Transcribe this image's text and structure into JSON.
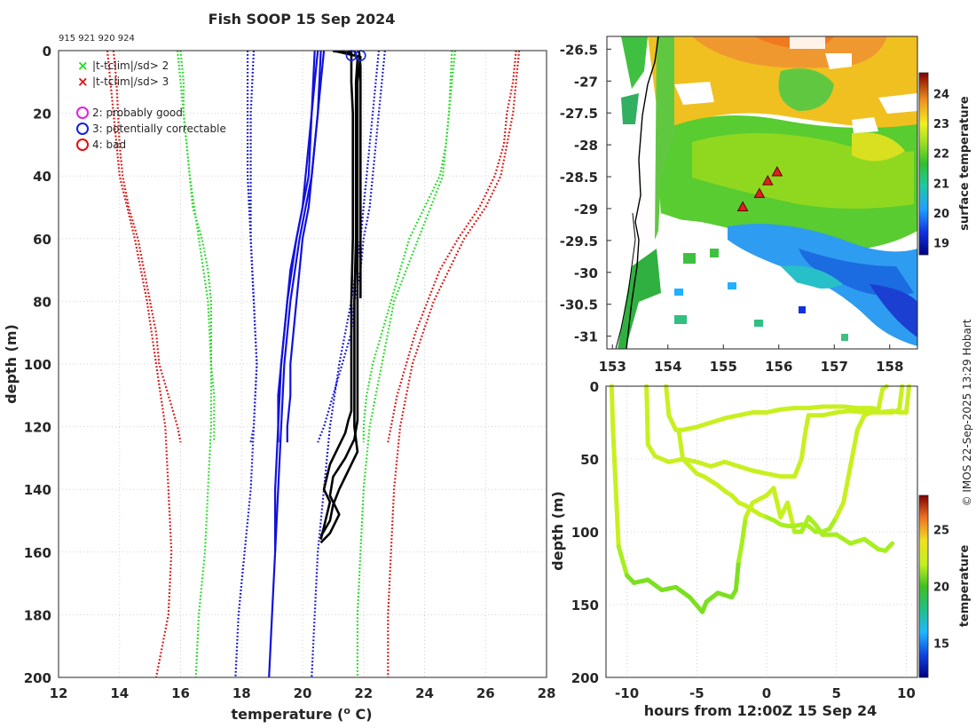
{
  "title": "Fish SOOP 15 Sep 2024",
  "ids": "915 921 920 924",
  "footer": "© IMOS 22-Sep-2025 13:29 Hobart",
  "colors": {
    "clim2": "#22dd22",
    "clim3": "#dd1111",
    "climsd1": "#1111dd",
    "profile": "#000000",
    "probably_good": "#dd22dd",
    "correctable": "#1122dd",
    "bad": "#dd1111"
  },
  "legend": {
    "sd2": "|t-tclim|/sd> 2",
    "sd3": "|t-tclim|/sd> 3",
    "flag2": "2: probably good",
    "flag3": "3: potentially correctable",
    "flag4": "4: bad"
  },
  "chart_data": [
    {
      "type": "line",
      "name": "profile",
      "xlabel": "temperature (o C)",
      "ylabel": "depth (m)",
      "xlim": [
        12,
        28
      ],
      "ylim": [
        200,
        0
      ],
      "xticks": [
        "12",
        "14",
        "16",
        "18",
        "20",
        "22",
        "24",
        "26",
        "28"
      ],
      "yticks": [
        "0",
        "20",
        "40",
        "60",
        "80",
        "100",
        "120",
        "140",
        "160",
        "180",
        "200"
      ],
      "grid": true,
      "series": [
        {
          "name": "clim+3sd a",
          "style": "dotted",
          "color": "red",
          "depth": [
            0,
            10,
            20,
            30,
            40,
            50,
            60,
            70,
            80,
            90,
            100,
            110,
            120,
            125
          ],
          "temp": [
            27.0,
            26.9,
            26.7,
            26.6,
            26.3,
            25.8,
            25.1,
            24.5,
            24.1,
            23.7,
            23.4,
            23.1,
            22.9,
            22.8
          ]
        },
        {
          "name": "clim+3sd b",
          "style": "dotted",
          "color": "red",
          "depth": [
            0,
            10,
            20,
            30,
            40,
            50,
            60,
            80,
            100,
            120,
            140,
            160,
            180,
            200
          ],
          "temp": [
            27.1,
            27.0,
            26.9,
            26.7,
            26.5,
            26.0,
            25.3,
            24.3,
            23.6,
            23.2,
            23.0,
            22.9,
            22.8,
            22.8
          ]
        },
        {
          "name": "clim-3sd a",
          "style": "dotted",
          "color": "red",
          "depth": [
            0,
            10,
            20,
            30,
            40,
            50,
            60,
            70,
            80,
            90,
            100,
            110,
            120,
            125
          ],
          "temp": [
            13.8,
            13.9,
            13.95,
            14.0,
            14.1,
            14.3,
            14.6,
            14.8,
            15.0,
            15.2,
            15.3,
            15.6,
            15.9,
            16.0
          ]
        },
        {
          "name": "clim-3sd b",
          "style": "dotted",
          "color": "red",
          "depth": [
            0,
            20,
            40,
            60,
            80,
            100,
            120,
            140,
            160,
            180,
            200
          ],
          "temp": [
            13.6,
            13.8,
            14.0,
            14.5,
            14.9,
            15.2,
            15.5,
            15.6,
            15.7,
            15.6,
            15.2
          ]
        },
        {
          "name": "clim+2sd a",
          "style": "dotted",
          "color": "green",
          "depth": [
            0,
            10,
            20,
            30,
            40,
            50,
            60,
            70,
            80,
            90,
            100,
            110,
            120,
            125
          ],
          "temp": [
            25.0,
            24.9,
            24.8,
            24.7,
            24.5,
            24.0,
            23.5,
            23.2,
            22.9,
            22.6,
            22.3,
            22.1,
            22.0,
            22.0
          ]
        },
        {
          "name": "clim+2sd b",
          "style": "dotted",
          "color": "green",
          "depth": [
            0,
            20,
            40,
            60,
            80,
            100,
            120,
            140,
            160,
            180,
            200
          ],
          "temp": [
            24.9,
            24.8,
            24.6,
            23.8,
            23.0,
            22.6,
            22.2,
            22.0,
            21.9,
            21.8,
            21.8
          ]
        },
        {
          "name": "clim-2sd a",
          "style": "dotted",
          "color": "green",
          "depth": [
            0,
            10,
            20,
            30,
            40,
            50,
            60,
            70,
            80,
            90,
            100,
            110,
            120,
            125
          ],
          "temp": [
            16.0,
            16.1,
            16.1,
            16.2,
            16.3,
            16.4,
            16.7,
            16.9,
            17.0,
            17.0,
            17.0,
            17.1,
            17.1,
            17.1
          ]
        },
        {
          "name": "clim-2sd b",
          "style": "dotted",
          "color": "green",
          "depth": [
            0,
            20,
            40,
            60,
            80,
            100,
            120,
            140,
            160,
            180,
            200
          ],
          "temp": [
            15.9,
            16.1,
            16.3,
            16.6,
            16.9,
            17.0,
            17.0,
            16.9,
            16.8,
            16.6,
            16.5
          ]
        },
        {
          "name": "clim+1sd a",
          "style": "dotted",
          "color": "blue",
          "depth": [
            0,
            10,
            20,
            30,
            40,
            50,
            60,
            70,
            80,
            90,
            100,
            110,
            120,
            125
          ],
          "temp": [
            22.7,
            22.6,
            22.5,
            22.4,
            22.3,
            22.2,
            22.0,
            21.9,
            21.7,
            21.6,
            21.3,
            21.0,
            20.7,
            20.5
          ]
        },
        {
          "name": "clim+1sd b",
          "style": "dotted",
          "color": "blue",
          "depth": [
            0,
            20,
            40,
            60,
            80,
            100,
            120,
            140,
            160,
            180,
            200
          ],
          "temp": [
            22.5,
            22.3,
            22.1,
            21.9,
            21.6,
            21.2,
            20.9,
            20.7,
            20.5,
            20.4,
            20.3
          ]
        },
        {
          "name": "clim-1sd a",
          "style": "dotted",
          "color": "blue",
          "depth": [
            0,
            20,
            40,
            60,
            80,
            100,
            120,
            125
          ],
          "temp": [
            18.2,
            18.2,
            18.2,
            18.3,
            18.4,
            18.5,
            18.4,
            18.3
          ]
        },
        {
          "name": "clim-1sd b",
          "style": "dotted",
          "color": "blue",
          "depth": [
            0,
            20,
            40,
            60,
            80,
            100,
            120,
            140,
            160,
            180,
            200
          ],
          "temp": [
            18.4,
            18.3,
            18.3,
            18.3,
            18.4,
            18.5,
            18.4,
            18.3,
            18.1,
            17.9,
            17.8
          ]
        },
        {
          "name": "clim a",
          "style": "solid",
          "color": "blue",
          "depth": [
            0,
            10,
            20,
            30,
            40,
            50,
            60,
            70,
            80,
            90,
            100,
            110,
            120,
            125
          ],
          "temp": [
            20.5,
            20.4,
            20.3,
            20.2,
            20.1,
            20.0,
            19.8,
            19.6,
            19.5,
            19.4,
            19.3,
            19.2,
            19.2,
            19.2
          ]
        },
        {
          "name": "clim b",
          "style": "solid",
          "color": "blue",
          "depth": [
            0,
            10,
            20,
            30,
            40,
            50,
            60,
            70,
            80,
            90,
            100,
            110,
            120,
            125
          ],
          "temp": [
            20.7,
            20.6,
            20.5,
            20.4,
            20.3,
            20.2,
            20.0,
            19.9,
            19.8,
            19.7,
            19.6,
            19.6,
            19.5,
            19.5
          ]
        },
        {
          "name": "clim c",
          "style": "solid",
          "color": "blue",
          "depth": [
            0,
            20,
            40,
            60,
            80,
            100,
            120,
            140,
            160,
            180,
            200
          ],
          "temp": [
            20.6,
            20.5,
            20.3,
            19.9,
            19.6,
            19.4,
            19.3,
            19.2,
            19.1,
            19.0,
            18.9
          ]
        },
        {
          "name": "clim d",
          "style": "solid",
          "color": "blue",
          "depth": [
            0,
            20,
            40,
            60,
            80,
            100,
            120,
            140,
            160
          ],
          "temp": [
            20.4,
            20.3,
            20.2,
            19.8,
            19.5,
            19.3,
            19.2,
            19.1,
            19.1
          ]
        },
        {
          "name": "profile a",
          "style": "solid",
          "color": "black",
          "depth": [
            0,
            5,
            10,
            20,
            40,
            60,
            80,
            100,
            115,
            118,
            122,
            128,
            132,
            136,
            140,
            144,
            148,
            152,
            156
          ],
          "temp": [
            21.6,
            21.6,
            21.6,
            21.65,
            21.65,
            21.65,
            21.6,
            21.6,
            21.6,
            21.5,
            21.4,
            21.1,
            20.9,
            20.8,
            20.7,
            20.9,
            20.8,
            20.7,
            20.6
          ]
        },
        {
          "name": "profile b",
          "style": "solid",
          "color": "black",
          "depth": [
            0,
            3,
            10,
            20,
            40,
            60,
            80,
            100,
            115,
            120,
            128,
            134,
            140,
            145,
            150,
            155
          ],
          "temp": [
            21.7,
            21.8,
            21.75,
            21.75,
            21.75,
            21.75,
            21.7,
            21.7,
            21.7,
            21.7,
            21.8,
            21.5,
            21.2,
            21.0,
            20.9,
            20.6
          ]
        },
        {
          "name": "profile c",
          "style": "solid",
          "color": "black",
          "depth": [
            0,
            5,
            10,
            20,
            40,
            60,
            79
          ],
          "temp": [
            21.85,
            21.9,
            21.9,
            21.9,
            21.9,
            21.9,
            21.9
          ]
        },
        {
          "name": "profile d",
          "style": "solid",
          "color": "black",
          "depth": [
            0,
            2,
            10,
            30,
            60,
            90,
            118,
            124,
            130,
            136,
            142,
            148,
            154,
            157
          ],
          "temp": [
            21.0,
            21.9,
            21.8,
            21.8,
            21.8,
            21.8,
            21.8,
            21.7,
            21.4,
            21.0,
            20.9,
            21.2,
            20.9,
            20.6
          ]
        }
      ],
      "flags": [
        {
          "flag": 3,
          "depth": 1,
          "temp": 21.6
        },
        {
          "flag": 3,
          "depth": 1,
          "temp": 21.9
        }
      ]
    },
    {
      "type": "heatmap",
      "name": "sst-map",
      "xlim": [
        152.9,
        158.5
      ],
      "ylim": [
        -31.2,
        -26.3
      ],
      "xticks": [
        "153",
        "154",
        "155",
        "156",
        "157",
        "158"
      ],
      "yticks": [
        "-26.5",
        "-27",
        "-27.5",
        "-28",
        "-28.5",
        "-29",
        "-29.5",
        "-30",
        "-30.5",
        "-31"
      ],
      "colorbar_label": "surface temperature",
      "colorbar_range": [
        18.6,
        24.7
      ],
      "colorbar_ticks": [
        "19",
        "20",
        "21",
        "22",
        "23",
        "24"
      ],
      "stations": [
        {
          "lon": 155.35,
          "lat": -28.98
        },
        {
          "lon": 155.65,
          "lat": -28.77
        },
        {
          "lon": 155.8,
          "lat": -28.57
        },
        {
          "lon": 155.97,
          "lat": -28.43
        }
      ]
    },
    {
      "type": "scatter",
      "name": "depth-time",
      "xlabel": "hours from 12:00Z 15 Sep 24",
      "ylabel": "depth (m)",
      "xlim": [
        -11.5,
        10.8
      ],
      "ylim": [
        200,
        0
      ],
      "xticks": [
        "-10",
        "-5",
        "0",
        "5",
        "10"
      ],
      "yticks": [
        "0",
        "50",
        "100",
        "150",
        "200"
      ],
      "colorbar_label": "temperature",
      "colorbar_range": [
        12,
        28
      ],
      "colorbar_ticks": [
        "15",
        "20",
        "25"
      ],
      "tracks": [
        {
          "h": [
            -11.1,
            -11.0,
            -10.6,
            -10.0,
            -9.5,
            -8.5,
            -7.5,
            -6.5,
            -5.5,
            -4.6,
            -4.3,
            -3.5,
            -2.5,
            -2.2,
            -2.0,
            -1.8,
            -1.5,
            -1.0,
            0.0,
            0.5,
            1.0,
            1.5,
            2.0,
            2.5,
            3.0,
            3.5,
            4.0,
            5.0,
            6.0,
            7.0,
            8.0,
            8.5,
            9.0
          ],
          "d": [
            0,
            30,
            110,
            130,
            135,
            133,
            140,
            138,
            145,
            155,
            148,
            142,
            145,
            140,
            120,
            110,
            90,
            80,
            75,
            70,
            90,
            80,
            100,
            100,
            90,
            95,
            102,
            102,
            108,
            105,
            112,
            113,
            108
          ]
        },
        {
          "h": [
            -8.6,
            -8.5,
            -8.0,
            -7.5,
            -7.0,
            -6.0,
            -5.0,
            -4.0,
            -3.0,
            -2.0,
            -1.0,
            0.0,
            1.0,
            2.0,
            2.5,
            2.8,
            3.0,
            4.0,
            5.0,
            6.0,
            7.0,
            8.0,
            9.0,
            9.5,
            10.0,
            10.2
          ],
          "d": [
            0,
            40,
            48,
            50,
            52,
            50,
            52,
            55,
            52,
            55,
            58,
            60,
            62,
            62,
            50,
            30,
            20,
            20,
            18,
            17,
            18,
            18,
            17,
            18,
            18,
            0
          ]
        },
        {
          "h": [
            -7.2,
            -7.0,
            -6.5,
            -6.0,
            -5.0,
            -4.0,
            -3.0,
            -2.0,
            -1.0,
            0.0,
            0.5,
            1.0,
            2.0,
            3.0,
            4.0,
            4.6,
            4.8,
            5.5,
            6.5,
            7.5,
            8.0,
            8.3,
            8.6
          ],
          "d": [
            0,
            20,
            30,
            30,
            28,
            25,
            22,
            20,
            18,
            18,
            17,
            16,
            15,
            15,
            14,
            14,
            14,
            14,
            15,
            15,
            16,
            2,
            0
          ]
        },
        {
          "h": [
            -6.3,
            -6.0,
            -5.5,
            -5.0,
            -4.5,
            -4.0,
            -3.5,
            -3.0,
            -2.5,
            -2.0,
            -1.5,
            -1.0,
            -0.5,
            0.0,
            0.5,
            1.0,
            1.5,
            2.0,
            2.5,
            3.0,
            3.5,
            4.0,
            4.5,
            5.0,
            5.5,
            6.0,
            6.5,
            7.0,
            7.5,
            8.0,
            8.5,
            9.0,
            9.3,
            9.5,
            9.7
          ],
          "d": [
            30,
            50,
            55,
            60,
            62,
            65,
            68,
            72,
            75,
            80,
            82,
            85,
            88,
            90,
            92,
            95,
            96,
            96,
            95,
            96,
            100,
            100,
            98,
            90,
            80,
            55,
            30,
            20,
            18,
            18,
            18,
            18,
            17,
            16,
            0
          ]
        }
      ]
    }
  ]
}
